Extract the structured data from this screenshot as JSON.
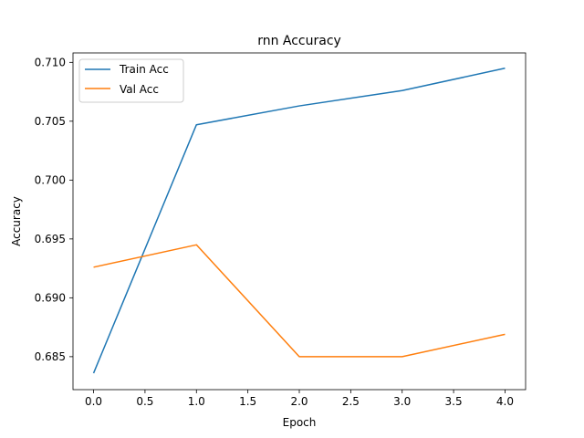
{
  "chart_data": {
    "type": "line",
    "title": "rnn Accuracy",
    "xlabel": "Epoch",
    "ylabel": "Accuracy",
    "x": [
      0,
      1,
      2,
      3,
      4
    ],
    "xlim": [
      -0.2,
      4.2
    ],
    "ylim": [
      0.6822,
      0.7108
    ],
    "xticks": [
      "0.0",
      "0.5",
      "1.0",
      "1.5",
      "2.0",
      "2.5",
      "3.0",
      "3.5",
      "4.0"
    ],
    "yticks": [
      "0.685",
      "0.690",
      "0.695",
      "0.700",
      "0.705",
      "0.710"
    ],
    "grid": false,
    "legend_position": "upper-left",
    "series": [
      {
        "name": "Train Acc",
        "color": "#1f77b4",
        "values": [
          0.6836,
          0.7047,
          0.7063,
          0.7076,
          0.7095
        ]
      },
      {
        "name": "Val Acc",
        "color": "#ff7f0e",
        "values": [
          0.6926,
          0.6945,
          0.685,
          0.685,
          0.6869
        ]
      }
    ]
  }
}
